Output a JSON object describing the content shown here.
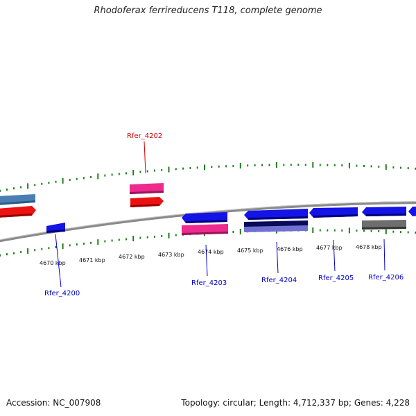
{
  "title": "Rhodoferax ferrireducens T118, complete genome",
  "colors": {
    "backbone": "#8a8a8a",
    "tick": "#1e7e1e",
    "forward_label": "#cc0000",
    "reverse_label": "#0000cc",
    "gene_blue": "#1414e6",
    "gene_red": "#ee1111",
    "gene_pink": "#ee2a8e",
    "gene_steel": "#4a7fb5",
    "gene_navy": "#0a0a5a",
    "gene_lavender": "#7070d0",
    "gene_gray": "#6e6e6e"
  },
  "kbp_labels": [
    "4670 kbp",
    "4671 kbp",
    "4672 kbp",
    "4673 kbp",
    "4674 kbp",
    "4675 kbp",
    "4676 kbp",
    "4677 kbp",
    "4678 kbp"
  ],
  "gene_labels": [
    {
      "name": "Rfer_4202",
      "strand": "forward"
    },
    {
      "name": "Rfer_4200",
      "strand": "reverse"
    },
    {
      "name": "Rfer_4203",
      "strand": "reverse"
    },
    {
      "name": "Rfer_4204",
      "strand": "reverse"
    },
    {
      "name": "Rfer_4205",
      "strand": "reverse"
    },
    {
      "name": "Rfer_4206",
      "strand": "reverse"
    }
  ],
  "footer": {
    "accession": "Accession: NC_007908",
    "topology": "Topology: circular; Length: 4,712,337 bp; Genes: 4,228"
  }
}
